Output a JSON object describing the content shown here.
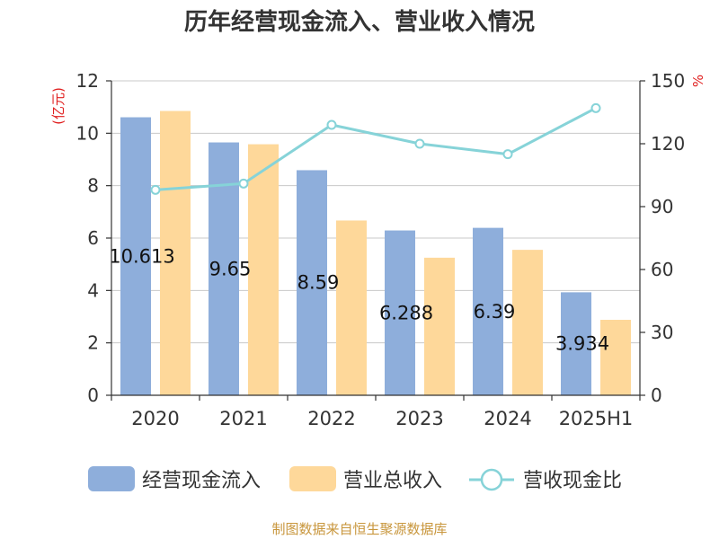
{
  "chart_data": {
    "type": "bar",
    "title": "历年经营现金流入、营业收入情况",
    "categories": [
      "2020",
      "2021",
      "2022",
      "2023",
      "2024",
      "2025H1"
    ],
    "left_axis": {
      "unit": "(亿元)",
      "ylim": [
        0,
        12
      ],
      "ticks": [
        "0",
        "2",
        "4",
        "6",
        "8",
        "10",
        "12"
      ]
    },
    "right_axis": {
      "unit": "%",
      "ylim": [
        0,
        150
      ],
      "ticks": [
        "0",
        "30",
        "60",
        "90",
        "120",
        "150"
      ]
    },
    "series": [
      {
        "name": "经营现金流入",
        "type": "bar",
        "axis": "left",
        "color": "#8eaedb",
        "values": [
          10.61,
          9.65,
          8.59,
          6.29,
          6.39,
          3.93
        ],
        "labels": [
          "10.613",
          "9.65",
          "8.59",
          "6.288",
          "6.39",
          "3.934"
        ]
      },
      {
        "name": "营业总收入",
        "type": "bar",
        "axis": "left",
        "color": "#fed89a",
        "values": [
          10.85,
          9.58,
          6.67,
          5.25,
          5.55,
          2.88
        ]
      },
      {
        "name": "营收现金比",
        "type": "line",
        "axis": "right",
        "color": "#86d3d8",
        "values": [
          98,
          101,
          129,
          120,
          115,
          137
        ]
      }
    ],
    "grid": true,
    "legend_position": "bottom"
  },
  "source": "制图数据来自恒生聚源数据库"
}
